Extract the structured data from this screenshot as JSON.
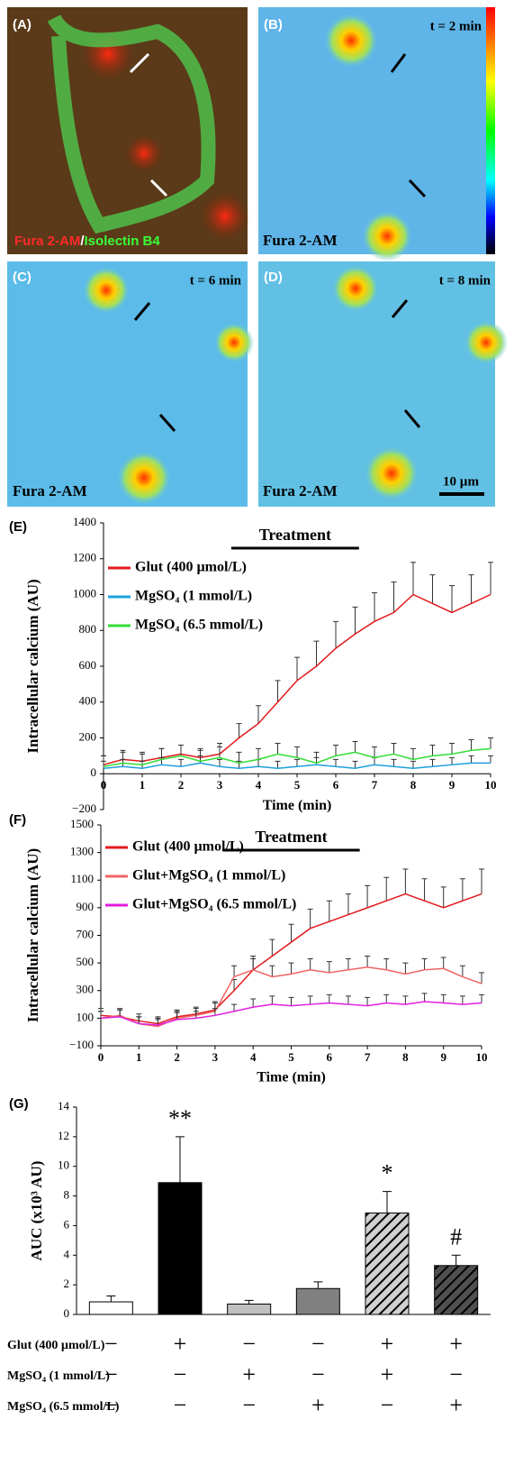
{
  "panels": [
    {
      "label": "(A)",
      "stain_red": "Fura 2-AM",
      "separator": "/",
      "stain_green": "Isolectin B4"
    },
    {
      "label": "(B)",
      "time": "t = 2 min",
      "stain": "Fura 2-AM"
    },
    {
      "label": "(C)",
      "time": "t = 6 min",
      "stain": "Fura 2-AM"
    },
    {
      "label": "(D)",
      "time": "t = 8 min",
      "stain": "Fura 2-AM",
      "scale_bar": "10 µm"
    }
  ],
  "chart_data": [
    {
      "type": "line",
      "panel": "(E)",
      "ylabel": "Intracellular calcium (AU)",
      "xlabel": "Time (min)",
      "annotation": {
        "text": "Treatment",
        "span": [
          3.3,
          6.6
        ]
      },
      "xlim": [
        0,
        10
      ],
      "xticks": [
        0,
        1,
        2,
        3,
        4,
        5,
        6,
        7,
        8,
        9,
        10
      ],
      "ylim": [
        -200,
        1400
      ],
      "yticks": [
        {
          "value": -200,
          "label": "−200"
        },
        0,
        200,
        400,
        600,
        800,
        1000,
        1200,
        1400
      ],
      "x_axis_crosses": 0,
      "x": [
        0,
        0.5,
        1,
        1.5,
        2,
        2.5,
        3,
        3.5,
        4,
        4.5,
        5,
        5.5,
        6,
        6.5,
        7,
        7.5,
        8,
        8.5,
        9,
        9.5,
        10
      ],
      "series": [
        {
          "name": "Glut (400 µmol/L)",
          "color": "#e31a1c",
          "values": [
            50,
            80,
            70,
            90,
            110,
            90,
            110,
            200,
            280,
            400,
            520,
            600,
            700,
            780,
            850,
            900,
            1000,
            950,
            900,
            950,
            1000
          ],
          "errors": [
            50,
            50,
            50,
            50,
            50,
            50,
            60,
            80,
            100,
            120,
            130,
            140,
            150,
            150,
            160,
            170,
            180,
            160,
            150,
            160,
            180
          ]
        },
        {
          "name": "MgSO₄ (1 mmol/L)",
          "color": "#1ea0dc",
          "values": [
            30,
            40,
            30,
            50,
            40,
            60,
            40,
            30,
            40,
            30,
            40,
            50,
            40,
            30,
            50,
            40,
            30,
            40,
            50,
            60,
            60
          ],
          "errors": [
            40,
            40,
            40,
            40,
            40,
            40,
            40,
            40,
            40,
            40,
            40,
            40,
            40,
            40,
            40,
            40,
            40,
            40,
            40,
            40,
            40
          ]
        },
        {
          "name": "MgSO₄ (6.5 mmol/L)",
          "color": "#33dd33",
          "values": [
            40,
            60,
            50,
            80,
            100,
            70,
            90,
            60,
            80,
            110,
            90,
            60,
            100,
            120,
            90,
            110,
            80,
            100,
            110,
            130,
            140
          ],
          "errors": [
            60,
            60,
            60,
            60,
            60,
            60,
            60,
            60,
            60,
            60,
            60,
            60,
            60,
            60,
            60,
            60,
            60,
            60,
            60,
            60,
            60
          ]
        }
      ]
    },
    {
      "type": "line",
      "panel": "(F)",
      "ylabel": "Intracellular calcium (AU)",
      "xlabel": "Time (min)",
      "annotation": {
        "text": "Treatment",
        "span": [
          3.2,
          6.8
        ]
      },
      "xlim": [
        0,
        10
      ],
      "xticks": [
        0,
        1,
        2,
        3,
        4,
        5,
        6,
        7,
        8,
        9,
        10
      ],
      "ylim": [
        -100,
        1500
      ],
      "yticks": [
        {
          "value": -100,
          "label": "−100"
        },
        100,
        300,
        500,
        700,
        900,
        1100,
        1300,
        1500
      ],
      "x_axis_crosses": -100,
      "x": [
        0,
        0.5,
        1,
        1.5,
        2,
        2.5,
        3,
        3.5,
        4,
        4.5,
        5,
        5.5,
        6,
        6.5,
        7,
        7.5,
        8,
        8.5,
        9,
        9.5,
        10
      ],
      "series": [
        {
          "name": "Glut (400 µmol/L)",
          "color": "#e31a1c",
          "values": [
            120,
            110,
            80,
            60,
            110,
            130,
            160,
            300,
            450,
            550,
            650,
            750,
            800,
            850,
            900,
            950,
            1000,
            950,
            900,
            950,
            1000
          ],
          "errors": [
            50,
            50,
            50,
            50,
            50,
            50,
            60,
            80,
            100,
            120,
            130,
            140,
            150,
            150,
            160,
            170,
            180,
            160,
            150,
            160,
            180
          ]
        },
        {
          "name": "Glut+MgSO₄ (1 mmol/L)",
          "color": "#f06464",
          "values": [
            100,
            120,
            60,
            40,
            100,
            120,
            150,
            400,
            450,
            400,
            420,
            450,
            430,
            450,
            470,
            450,
            420,
            450,
            460,
            400,
            350
          ],
          "errors": [
            50,
            50,
            50,
            50,
            50,
            50,
            60,
            80,
            80,
            80,
            80,
            80,
            80,
            80,
            80,
            80,
            80,
            80,
            80,
            80,
            80
          ]
        },
        {
          "name": "Glut+MgSO₄ (6.5 mmol/L)",
          "color": "#e01ee0",
          "values": [
            100,
            110,
            60,
            50,
            90,
            100,
            120,
            150,
            180,
            200,
            190,
            200,
            210,
            200,
            190,
            210,
            200,
            220,
            210,
            200,
            210
          ],
          "errors": [
            50,
            50,
            50,
            50,
            50,
            50,
            50,
            50,
            60,
            60,
            60,
            60,
            60,
            60,
            60,
            60,
            60,
            60,
            60,
            60,
            60
          ]
        }
      ]
    },
    {
      "type": "bar",
      "panel": "(G)",
      "ylabel": "AUC (x10³ AU)",
      "categories": [
        null,
        null,
        null,
        null,
        null,
        null
      ],
      "values": [
        0.85,
        8.9,
        0.7,
        1.75,
        6.85,
        3.3
      ],
      "errors": [
        0.4,
        3.1,
        0.25,
        0.45,
        1.45,
        0.7
      ],
      "significance": [
        "",
        "**",
        "",
        "",
        "*",
        "#"
      ],
      "colors": [
        "#ffffff",
        "#000000",
        "#c0c0c0",
        "#808080",
        "#d0d0d0",
        "#505050"
      ],
      "hatched": [
        false,
        false,
        false,
        false,
        true,
        true
      ],
      "ylim": [
        0,
        14
      ],
      "yticks": [
        0,
        2,
        4,
        6,
        8,
        10,
        12,
        14
      ],
      "conditions": [
        {
          "label": "Glut (400 µmol/L)",
          "signs": [
            "−",
            "+",
            "−",
            "−",
            "+",
            "+"
          ]
        },
        {
          "label": "MgSO₄ (1 mmol/L)",
          "signs": [
            "−",
            "−",
            "+",
            "−",
            "+",
            "−"
          ]
        },
        {
          "label": "MgSO₄ (6.5 mmol/L)",
          "signs": [
            "−",
            "−",
            "−",
            "+",
            "−",
            "+"
          ]
        }
      ]
    }
  ]
}
